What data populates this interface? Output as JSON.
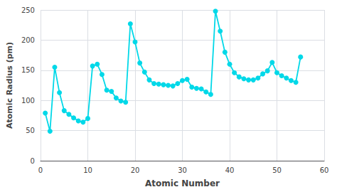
{
  "chart_data": {
    "type": "line",
    "x": [
      1,
      2,
      3,
      4,
      5,
      6,
      7,
      8,
      9,
      10,
      11,
      12,
      13,
      14,
      15,
      16,
      17,
      18,
      19,
      20,
      21,
      22,
      23,
      24,
      25,
      26,
      27,
      28,
      29,
      30,
      31,
      32,
      33,
      34,
      35,
      36,
      37,
      38,
      39,
      40,
      41,
      42,
      43,
      44,
      45,
      46,
      47,
      48,
      49,
      50,
      51,
      52,
      53,
      54,
      55
    ],
    "values": [
      79,
      49,
      155,
      113,
      83,
      77,
      71,
      66,
      64,
      70,
      157,
      160,
      143,
      117,
      115,
      104,
      99,
      97,
      227,
      197,
      162,
      147,
      134,
      128,
      127,
      126,
      125,
      124,
      128,
      133,
      135,
      122,
      120,
      119,
      114,
      110,
      248,
      215,
      180,
      160,
      146,
      139,
      136,
      134,
      134,
      137,
      144,
      149,
      163,
      146,
      141,
      137,
      133,
      130,
      172
    ],
    "color": "#00d8e8",
    "marker": "circle",
    "xlabel": "Atomic Number",
    "ylabel": "Atomic Radius (pm)",
    "xlim": [
      0,
      60
    ],
    "ylim": [
      0,
      250
    ],
    "xticks": [
      0,
      10,
      20,
      30,
      40,
      50,
      60
    ],
    "yticks": [
      0,
      50,
      100,
      150,
      200,
      250
    ],
    "grid": true
  }
}
